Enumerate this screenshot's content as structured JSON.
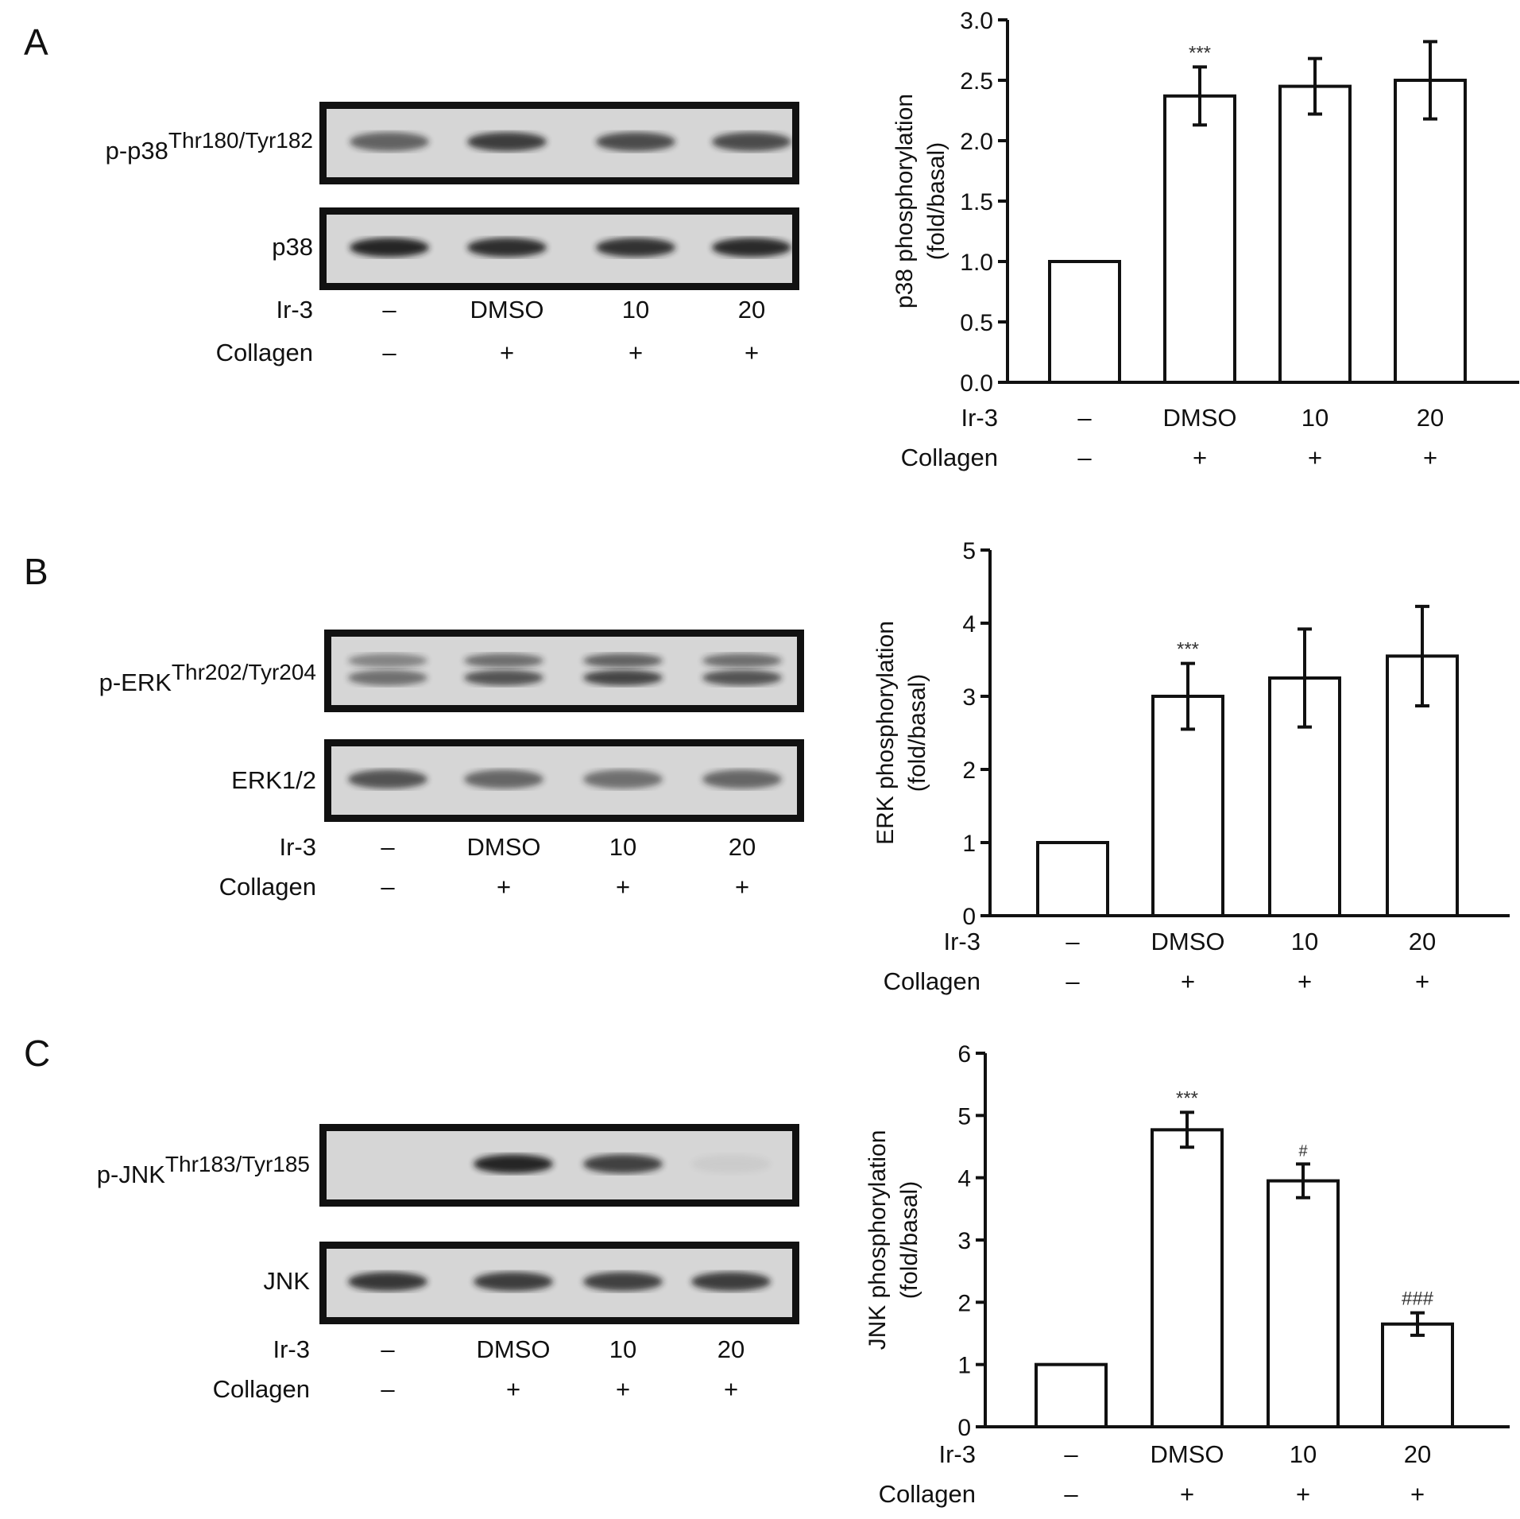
{
  "panels": [
    {
      "letter": "A",
      "blot_rows": [
        {
          "label_main": "p-p38",
          "label_sup": "Thr180/Tyr182",
          "intensities": [
            0.62,
            0.82,
            0.74,
            0.74
          ],
          "double": false
        },
        {
          "label_main": "p38",
          "label_sup": "",
          "intensities": [
            0.95,
            0.9,
            0.88,
            0.92
          ],
          "double": false
        }
      ],
      "conditions": {
        "ir3_label": "Ir-3",
        "collagen_label": "Collagen",
        "ir3_values": [
          "–",
          "DMSO",
          "10",
          "20"
        ],
        "collagen_values": [
          "–",
          "+",
          "+",
          "+"
        ]
      }
    },
    {
      "letter": "B",
      "blot_rows": [
        {
          "label_main": "p-ERK",
          "label_sup": "Thr202/Tyr204",
          "intensities": [
            0.55,
            0.7,
            0.78,
            0.7
          ],
          "double": true
        },
        {
          "label_main": "ERK1/2",
          "label_sup": "",
          "intensities": [
            0.7,
            0.6,
            0.55,
            0.6
          ],
          "double": false
        }
      ],
      "conditions": {
        "ir3_label": "Ir-3",
        "collagen_label": "Collagen",
        "ir3_values": [
          "–",
          "DMSO",
          "10",
          "20"
        ],
        "collagen_values": [
          "–",
          "+",
          "+",
          "+"
        ]
      }
    },
    {
      "letter": "C",
      "blot_rows": [
        {
          "label_main": "p-JNK",
          "label_sup": "Thr183/Tyr185",
          "intensities": [
            0.0,
            0.95,
            0.8,
            0.05
          ],
          "double": false
        },
        {
          "label_main": "JNK",
          "label_sup": "",
          "intensities": [
            0.85,
            0.82,
            0.8,
            0.82
          ],
          "double": false
        }
      ],
      "conditions": {
        "ir3_label": "Ir-3",
        "collagen_label": "Collagen",
        "ir3_values": [
          "–",
          "DMSO",
          "10",
          "20"
        ],
        "collagen_values": [
          "–",
          "+",
          "+",
          "+"
        ]
      }
    }
  ],
  "chart_data": [
    {
      "type": "bar",
      "ylabel_line1": "p38 phosphorylation",
      "ylabel_line2": "(fold/basal)",
      "ylim": [
        0,
        3.0
      ],
      "yticks": [
        "0.0",
        "0.5",
        "1.0",
        "1.5",
        "2.0",
        "2.5",
        "3.0"
      ],
      "categories": [
        "–",
        "DMSO",
        "10",
        "20"
      ],
      "collagen": [
        "–",
        "+",
        "+",
        "+"
      ],
      "row_labels": [
        "Ir-3",
        "Collagen"
      ],
      "values": [
        1.0,
        2.37,
        2.45,
        2.5
      ],
      "errors": [
        0,
        0.24,
        0.23,
        0.32
      ],
      "annotations": [
        "",
        "***",
        "",
        ""
      ],
      "grid": false
    },
    {
      "type": "bar",
      "ylabel_line1": "ERK phosphorylation",
      "ylabel_line2": "(fold/basal)",
      "ylim": [
        0,
        5
      ],
      "yticks": [
        "0",
        "1",
        "2",
        "3",
        "4",
        "5"
      ],
      "categories": [
        "–",
        "DMSO",
        "10",
        "20"
      ],
      "collagen": [
        "–",
        "+",
        "+",
        "+"
      ],
      "row_labels": [
        "Ir-3",
        "Collagen"
      ],
      "values": [
        1.0,
        3.0,
        3.25,
        3.55
      ],
      "errors": [
        0,
        0.45,
        0.67,
        0.68
      ],
      "annotations": [
        "",
        "***",
        "",
        ""
      ],
      "grid": false
    },
    {
      "type": "bar",
      "ylabel_line1": "JNK phosphorylation",
      "ylabel_line2": "(fold/basal)",
      "ylim": [
        0,
        6
      ],
      "yticks": [
        "0",
        "1",
        "2",
        "3",
        "4",
        "5",
        "6"
      ],
      "categories": [
        "–",
        "DMSO",
        "10",
        "20"
      ],
      "collagen": [
        "–",
        "+",
        "+",
        "+"
      ],
      "row_labels": [
        "Ir-3",
        "Collagen"
      ],
      "values": [
        1.0,
        4.77,
        3.95,
        1.65
      ],
      "errors": [
        0,
        0.28,
        0.27,
        0.18
      ],
      "annotations": [
        "",
        "***",
        "#",
        "###"
      ],
      "grid": false
    }
  ]
}
